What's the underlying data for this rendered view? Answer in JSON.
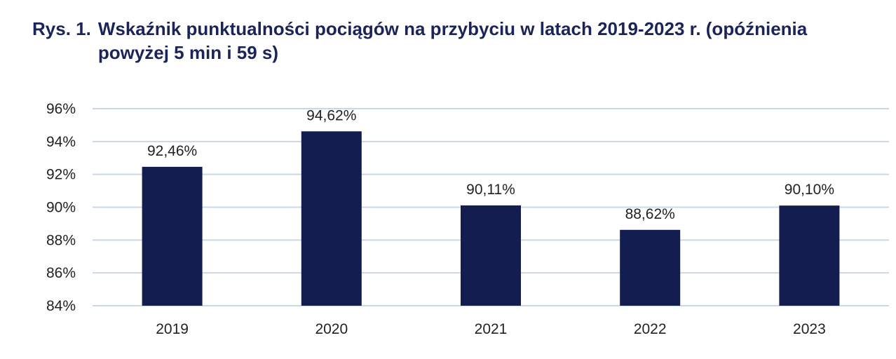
{
  "figure": {
    "label": "Rys. 1.",
    "title": "Wskaźnik punktualności pociągów na przybyciu w latach 2019-2023 r. (opóźnienia powyżej 5 min i 59 s)"
  },
  "chart_data": {
    "type": "bar",
    "categories": [
      "2019",
      "2020",
      "2021",
      "2022",
      "2023"
    ],
    "values": [
      92.46,
      94.62,
      90.11,
      88.62,
      90.1
    ],
    "data_labels": [
      "92,46%",
      "94,62%",
      "90,11%",
      "88,62%",
      "90,10%"
    ],
    "yticks": [
      84,
      86,
      88,
      90,
      92,
      94,
      96
    ],
    "ytick_labels": [
      "84%",
      "86%",
      "88%",
      "90%",
      "92%",
      "94%",
      "96%"
    ],
    "ylim": [
      84,
      96
    ],
    "grid": true,
    "legend": "none",
    "bar_color": "#141d4f",
    "grid_color": "#c9d7e8"
  }
}
